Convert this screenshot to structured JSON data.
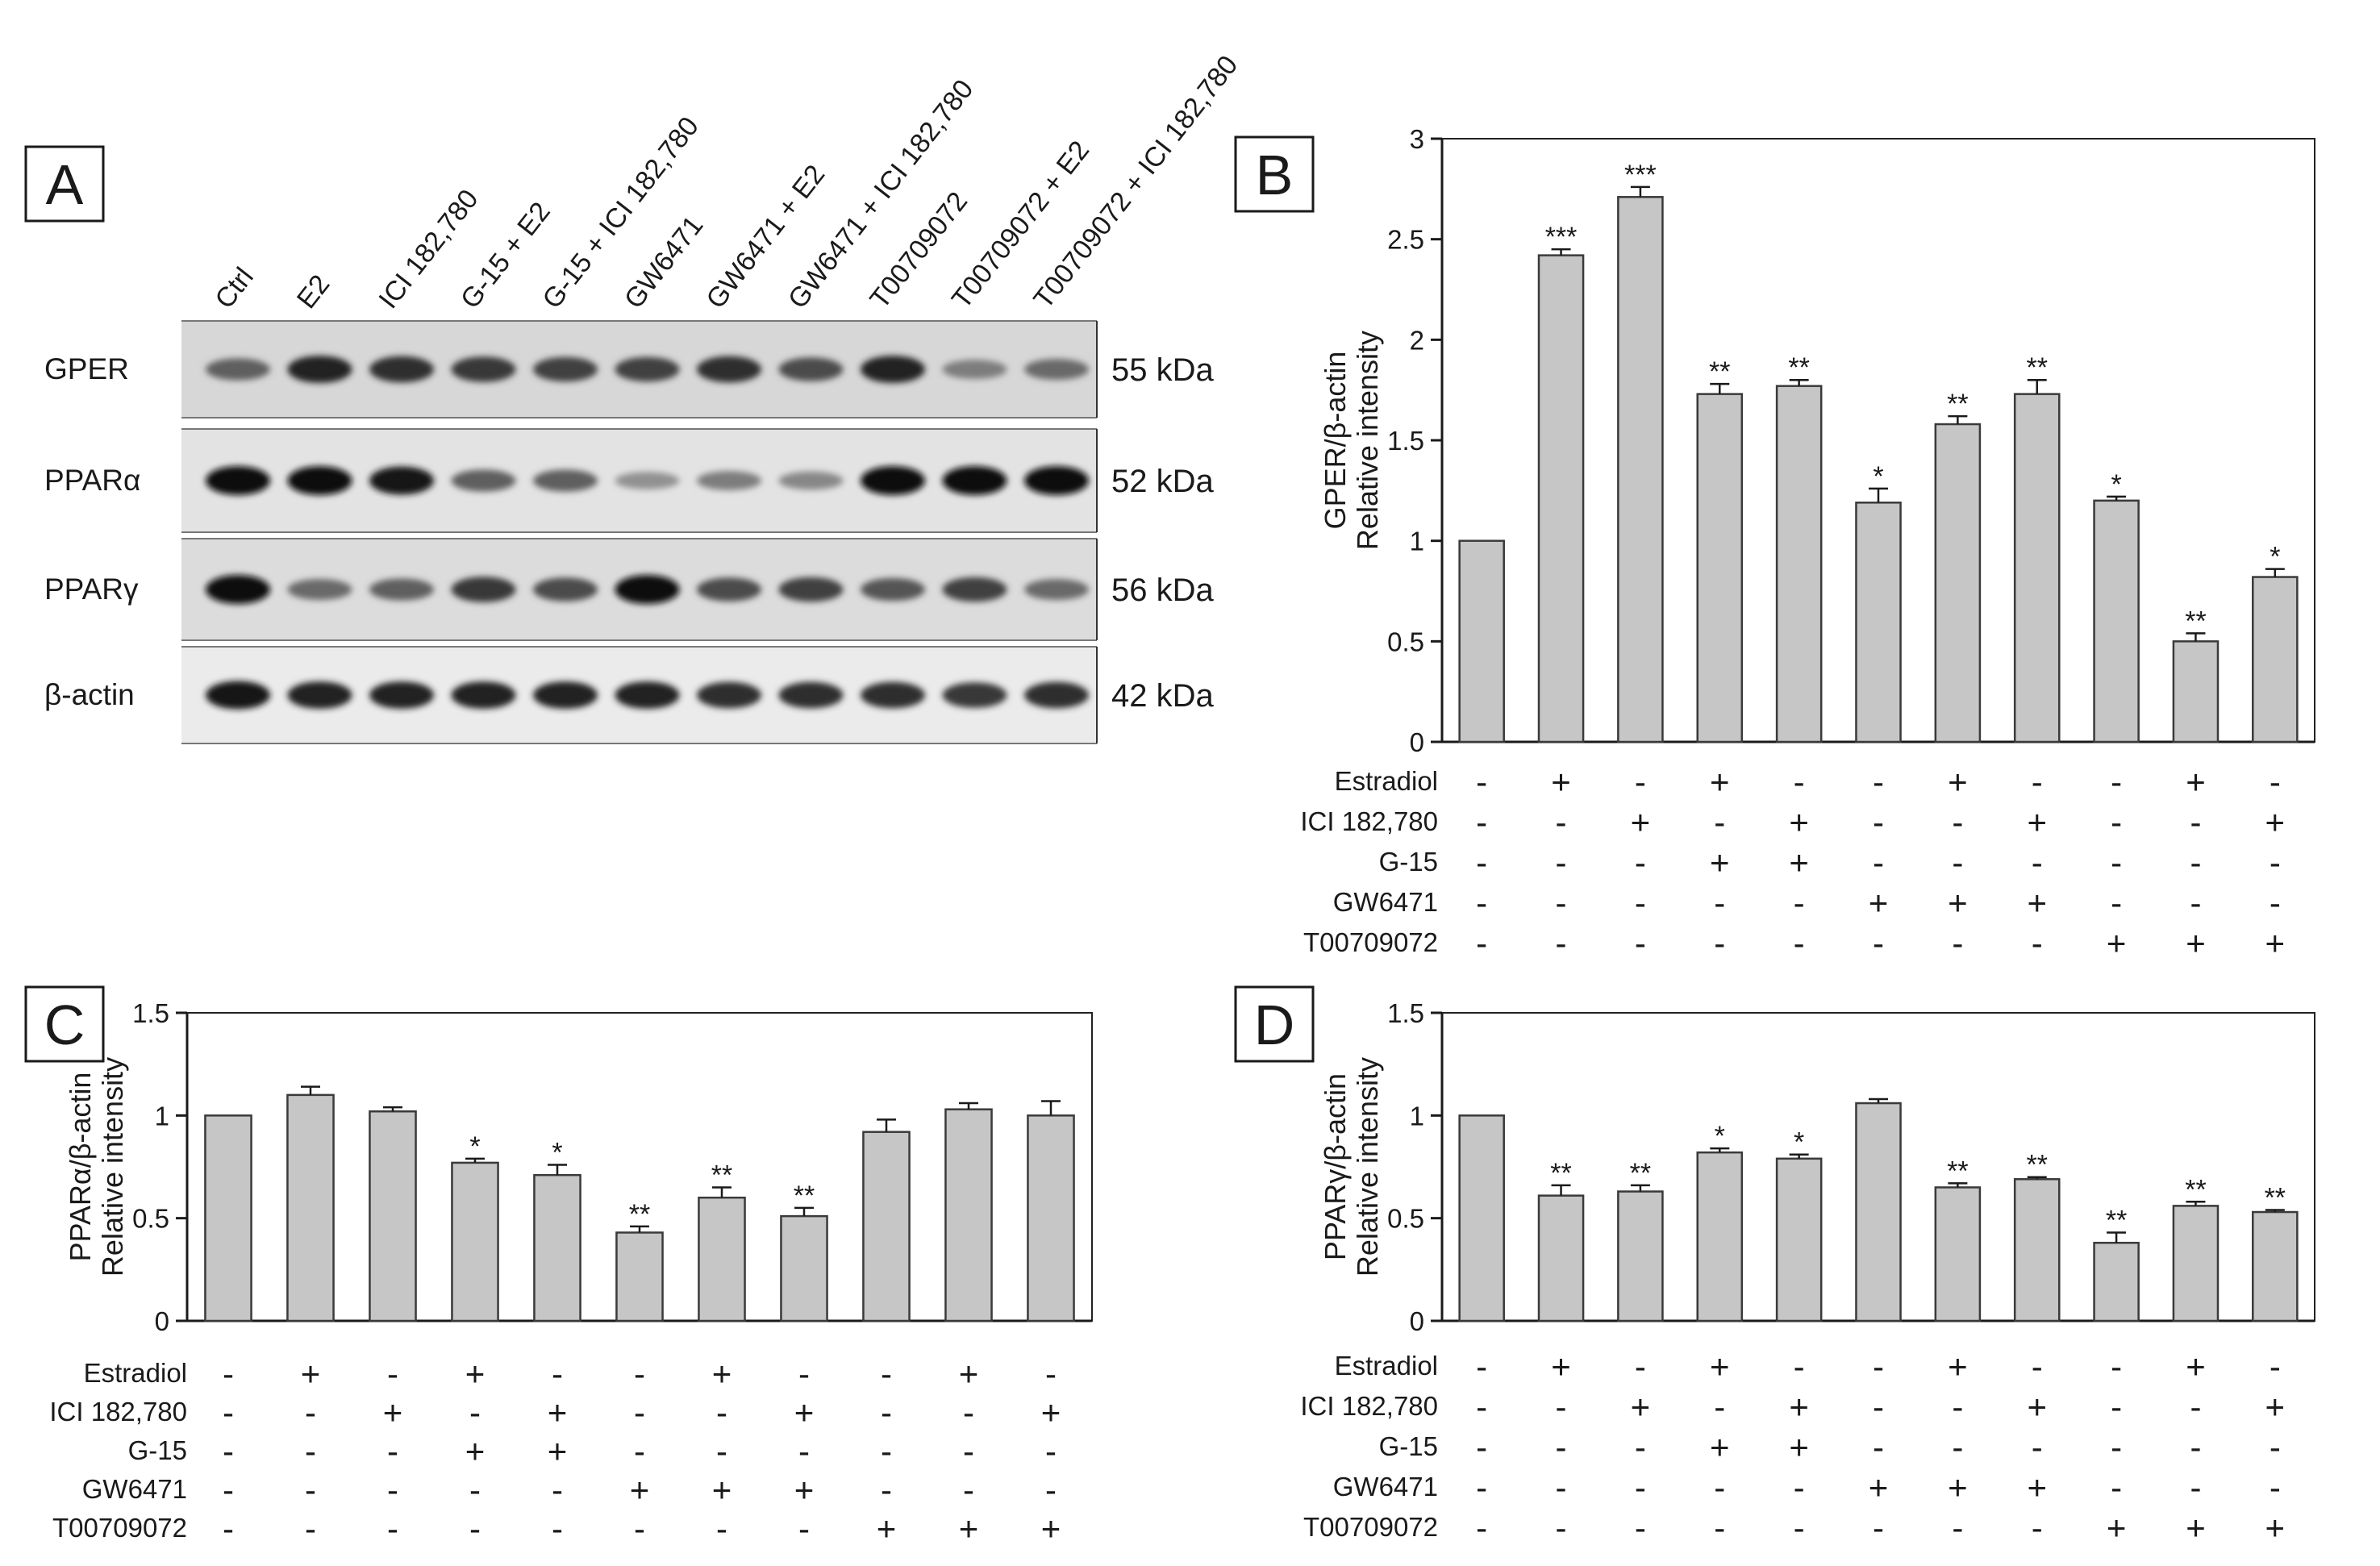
{
  "panels": {
    "a": "A",
    "b": "B",
    "c": "C",
    "d": "D"
  },
  "blot": {
    "lanes": [
      "Ctrl",
      "E2",
      "ICI 182,780",
      "G-15 + E2",
      "G-15 + ICI 182,780",
      "GW6471",
      "GW6471 + E2",
      "GW6471 + ICI 182,780",
      "T00709072",
      "T00709072 + E2",
      "T00709072 + ICI 182,780"
    ],
    "rows": [
      {
        "protein": "GPER",
        "kda": "55 kDa",
        "intensities": [
          0.6,
          0.9,
          0.85,
          0.8,
          0.75,
          0.75,
          0.85,
          0.7,
          0.9,
          0.45,
          0.55
        ]
      },
      {
        "protein": "PPARα",
        "kda": "52 kDa",
        "intensities": [
          1.0,
          1.0,
          0.95,
          0.6,
          0.6,
          0.35,
          0.45,
          0.4,
          1.0,
          1.0,
          1.0
        ]
      },
      {
        "protein": "PPARγ",
        "kda": "56 kDa",
        "intensities": [
          1.0,
          0.55,
          0.6,
          0.8,
          0.7,
          1.0,
          0.7,
          0.75,
          0.65,
          0.75,
          0.55
        ]
      },
      {
        "protein": "β-actin",
        "kda": "42 kDa",
        "intensities": [
          0.95,
          0.9,
          0.9,
          0.9,
          0.9,
          0.9,
          0.85,
          0.85,
          0.85,
          0.8,
          0.85
        ]
      }
    ]
  },
  "treatments": {
    "names": [
      "Estradiol",
      "ICI 182,780",
      "G-15",
      "GW6471",
      "T00709072"
    ],
    "matrix": [
      [
        "-",
        "+",
        "-",
        "+",
        "-",
        "-",
        "+",
        "-",
        "-",
        "+",
        "-"
      ],
      [
        "-",
        "-",
        "+",
        "-",
        "+",
        "-",
        "-",
        "+",
        "-",
        "-",
        "+"
      ],
      [
        "-",
        "-",
        "-",
        "+",
        "+",
        "-",
        "-",
        "-",
        "-",
        "-",
        "-"
      ],
      [
        "-",
        "-",
        "-",
        "-",
        "-",
        "+",
        "+",
        "+",
        "-",
        "-",
        "-"
      ],
      [
        "-",
        "-",
        "-",
        "-",
        "-",
        "-",
        "-",
        "-",
        "+",
        "+",
        "+"
      ]
    ]
  },
  "chart_data": [
    {
      "panel": "B",
      "type": "bar",
      "ylabel": [
        "GPER/β-actin",
        "Relative intensity"
      ],
      "ylim": [
        0,
        3
      ],
      "yticks": [
        "0",
        "0.5",
        "1",
        "1.5",
        "2",
        "2.5",
        "3"
      ],
      "values": [
        1.0,
        2.42,
        2.71,
        1.73,
        1.77,
        1.19,
        1.58,
        1.73,
        1.2,
        0.5,
        0.82
      ],
      "errors": [
        0,
        0.03,
        0.05,
        0.05,
        0.03,
        0.07,
        0.04,
        0.07,
        0.02,
        0.04,
        0.04
      ],
      "significance": [
        "",
        "***",
        "***",
        "**",
        "**",
        "*",
        "**",
        "**",
        "*",
        "**",
        "*"
      ]
    },
    {
      "panel": "C",
      "type": "bar",
      "ylabel": [
        "PPARα/β-actin",
        "Relative intensity"
      ],
      "ylim": [
        0,
        1.5
      ],
      "yticks": [
        "0",
        "0.5",
        "1",
        "1.5"
      ],
      "values": [
        1.0,
        1.1,
        1.02,
        0.77,
        0.71,
        0.43,
        0.6,
        0.51,
        0.92,
        1.03,
        1.0
      ],
      "errors": [
        0,
        0.04,
        0.02,
        0.02,
        0.05,
        0.03,
        0.05,
        0.04,
        0.06,
        0.03,
        0.07
      ],
      "significance": [
        "",
        "",
        "",
        "*",
        "*",
        "**",
        "**",
        "**",
        "",
        "",
        ""
      ]
    },
    {
      "panel": "D",
      "type": "bar",
      "ylabel": [
        "PPARγ/β-actin",
        "Relative intensity"
      ],
      "ylim": [
        0,
        1.5
      ],
      "yticks": [
        "0",
        "0.5",
        "1",
        "1.5"
      ],
      "values": [
        1.0,
        0.61,
        0.63,
        0.82,
        0.79,
        1.06,
        0.65,
        0.69,
        0.38,
        0.56,
        0.53
      ],
      "errors": [
        0,
        0.05,
        0.03,
        0.02,
        0.02,
        0.02,
        0.02,
        0.01,
        0.05,
        0.02,
        0.01
      ],
      "significance": [
        "",
        "**",
        "**",
        "*",
        "*",
        "",
        "**",
        "**",
        "**",
        "**",
        "**"
      ]
    }
  ]
}
